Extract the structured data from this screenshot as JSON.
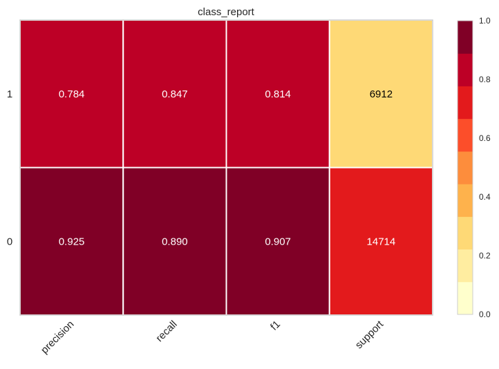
{
  "chart_data": {
    "type": "heatmap",
    "title": "class_report",
    "xlabel": "",
    "ylabel": "",
    "x_categories": [
      "precision",
      "recall",
      "f1",
      "support"
    ],
    "y_categories": [
      "1",
      "0"
    ],
    "cells": [
      [
        "0.784",
        "0.847",
        "0.814",
        "6912"
      ],
      [
        "0.925",
        "0.890",
        "0.907",
        "14714"
      ]
    ],
    "values": [
      [
        0.784,
        0.847,
        0.814,
        6912
      ],
      [
        0.925,
        0.89,
        0.907,
        14714
      ]
    ],
    "cell_colors": [
      [
        "#bd0026",
        "#bd0026",
        "#bd0026",
        "#fed976"
      ],
      [
        "#800026",
        "#800026",
        "#800026",
        "#e31a1c"
      ]
    ],
    "cell_text_colors": [
      [
        "#ffffff",
        "#ffffff",
        "#ffffff",
        "#000000"
      ],
      [
        "#ffffff",
        "#ffffff",
        "#ffffff",
        "#ffffff"
      ]
    ],
    "colorbar": {
      "range": [
        0.0,
        1.0
      ],
      "ticks": [
        "0.0",
        "0.2",
        "0.4",
        "0.6",
        "0.8",
        "1.0"
      ],
      "colors": [
        "#ffffcc",
        "#ffeda0",
        "#fed976",
        "#feb24c",
        "#fd8d3c",
        "#fc4e2a",
        "#e31a1c",
        "#bd0026",
        "#800026"
      ]
    },
    "grid": false,
    "legend": "colorbar-right"
  }
}
